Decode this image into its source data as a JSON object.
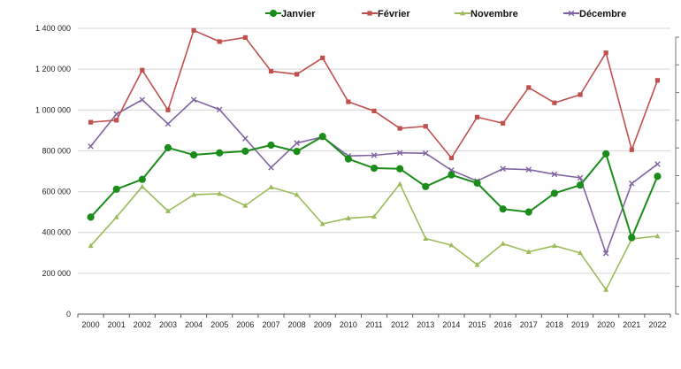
{
  "chart_data": {
    "type": "line",
    "title": "",
    "xlabel": "",
    "ylabel": "",
    "ylim": [
      0,
      1400000
    ],
    "yticks": [
      0,
      200000,
      400000,
      600000,
      800000,
      1000000,
      1200000,
      1400000
    ],
    "ytick_labels": [
      "0",
      "200 000",
      "400 000",
      "600 000",
      "800 000",
      "1 000 000",
      "1 200 000",
      "1 400 000"
    ],
    "grid": true,
    "legend_position": "top",
    "categories": [
      "2000",
      "2001",
      "2002",
      "2003",
      "2004",
      "2005",
      "2006",
      "2007",
      "2008",
      "2009",
      "2010",
      "2011",
      "2012",
      "2013",
      "2014",
      "2015",
      "2016",
      "2017",
      "2018",
      "2019",
      "2020",
      "2021",
      "2022"
    ],
    "series": [
      {
        "name": "Janvier",
        "color": "#1a8c1a",
        "marker": "circle",
        "values": [
          475000,
          612000,
          660000,
          815000,
          780000,
          790000,
          798000,
          828000,
          797000,
          870000,
          760000,
          715000,
          712000,
          625000,
          682000,
          642000,
          515000,
          500000,
          592000,
          632000,
          785000,
          375000,
          675000
        ]
      },
      {
        "name": "Février",
        "color": "#c0504d",
        "marker": "square",
        "values": [
          940000,
          950000,
          1195000,
          1000000,
          1390000,
          1335000,
          1355000,
          1190000,
          1175000,
          1255000,
          1040000,
          995000,
          910000,
          920000,
          765000,
          965000,
          935000,
          1110000,
          1035000,
          1075000,
          1280000,
          805000,
          1145000
        ]
      },
      {
        "name": "Novembre",
        "color": "#9bbb59",
        "marker": "triangle",
        "values": [
          335000,
          475000,
          625000,
          505000,
          585000,
          590000,
          532000,
          622000,
          585000,
          442000,
          470000,
          478000,
          638000,
          370000,
          338000,
          242000,
          345000,
          305000,
          335000,
          300000,
          120000,
          368000,
          382000
        ]
      },
      {
        "name": "Décembre",
        "color": "#8064a2",
        "marker": "x",
        "values": [
          822000,
          980000,
          1050000,
          932000,
          1050000,
          1002000,
          860000,
          718000,
          838000,
          868000,
          775000,
          778000,
          790000,
          788000,
          705000,
          652000,
          712000,
          708000,
          685000,
          668000,
          298000,
          640000,
          735000
        ]
      }
    ]
  }
}
